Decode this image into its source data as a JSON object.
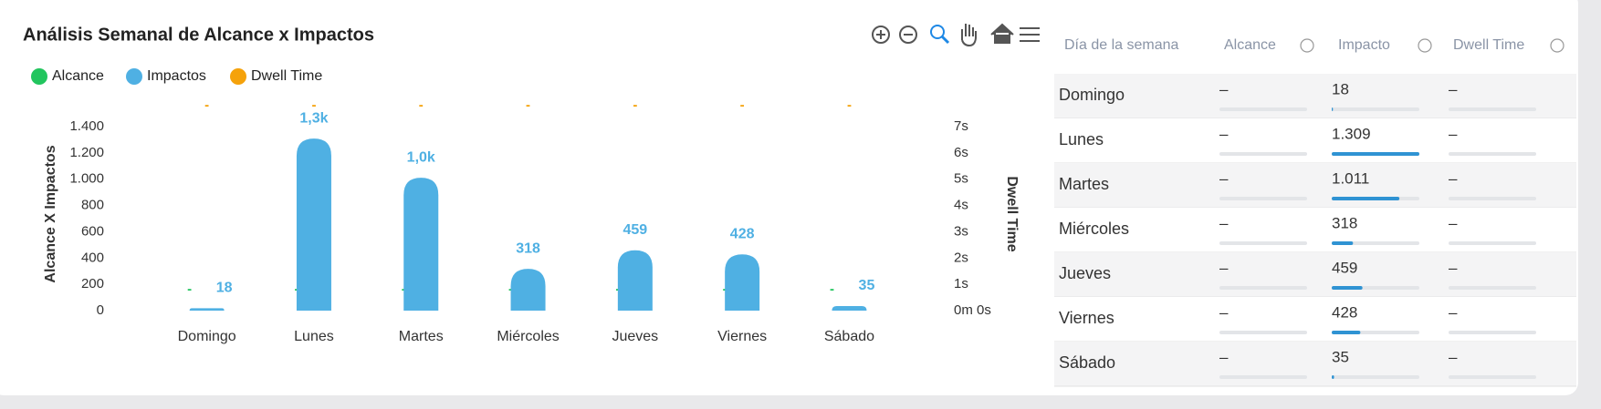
{
  "chart_data": {
    "type": "bar",
    "title": "Análisis Semanal de Alcance x Impactos",
    "categories": [
      "Domingo",
      "Lunes",
      "Martes",
      "Miércoles",
      "Jueves",
      "Viernes",
      "Sábado"
    ],
    "series": [
      {
        "name": "Alcance",
        "color": "#22c55e",
        "values": [
          null,
          null,
          null,
          null,
          null,
          null,
          null
        ],
        "value_labels": [
          "-",
          "-",
          "-",
          "-",
          "-",
          "-",
          "-"
        ]
      },
      {
        "name": "Impactos",
        "color": "#4fb0e3",
        "values": [
          18,
          1309,
          1011,
          318,
          459,
          428,
          35
        ],
        "value_labels": [
          "18",
          "1,3k",
          "1,0k",
          "318",
          "459",
          "428",
          "35"
        ]
      },
      {
        "name": "Dwell Time",
        "color": "#f5a20b",
        "axis": "y2",
        "values": [
          null,
          null,
          null,
          null,
          null,
          null,
          null
        ],
        "value_labels": [
          "-",
          "-",
          "-",
          "-",
          "-",
          "-",
          "-"
        ]
      }
    ],
    "ylabel": "Alcance X Impactos",
    "y2label": "Dwell Time",
    "ylim": [
      0,
      1400
    ],
    "yticks": [
      0,
      200,
      400,
      600,
      800,
      {
        "value": 1000,
        "label": "1.000"
      },
      {
        "value": 1200,
        "label": "1.200"
      },
      {
        "value": 1400,
        "label": "1.400"
      }
    ],
    "y2lim": [
      0,
      7
    ],
    "y2ticks": [
      {
        "value": 0,
        "label": "0m 0s"
      },
      {
        "value": 1,
        "label": "1s"
      },
      {
        "value": 2,
        "label": "2s"
      },
      {
        "value": 3,
        "label": "3s"
      },
      {
        "value": 4,
        "label": "4s"
      },
      {
        "value": 5,
        "label": "5s"
      },
      {
        "value": 6,
        "label": "6s"
      },
      {
        "value": 7,
        "label": "7s"
      }
    ]
  },
  "table": {
    "headers": [
      "Día de la semana",
      "Alcance",
      "Impacto",
      "Dwell Time"
    ],
    "rows": [
      [
        "Domingo",
        "–",
        "18",
        "–"
      ],
      [
        "Lunes",
        "–",
        "1.309",
        "–"
      ],
      [
        "Martes",
        "–",
        "1.011",
        "–"
      ],
      [
        "Miércoles",
        "–",
        "318",
        "–"
      ],
      [
        "Jueves",
        "–",
        "459",
        "–"
      ],
      [
        "Viernes",
        "–",
        "428",
        "–"
      ],
      [
        "Sábado",
        "–",
        "35",
        "–"
      ]
    ]
  }
}
